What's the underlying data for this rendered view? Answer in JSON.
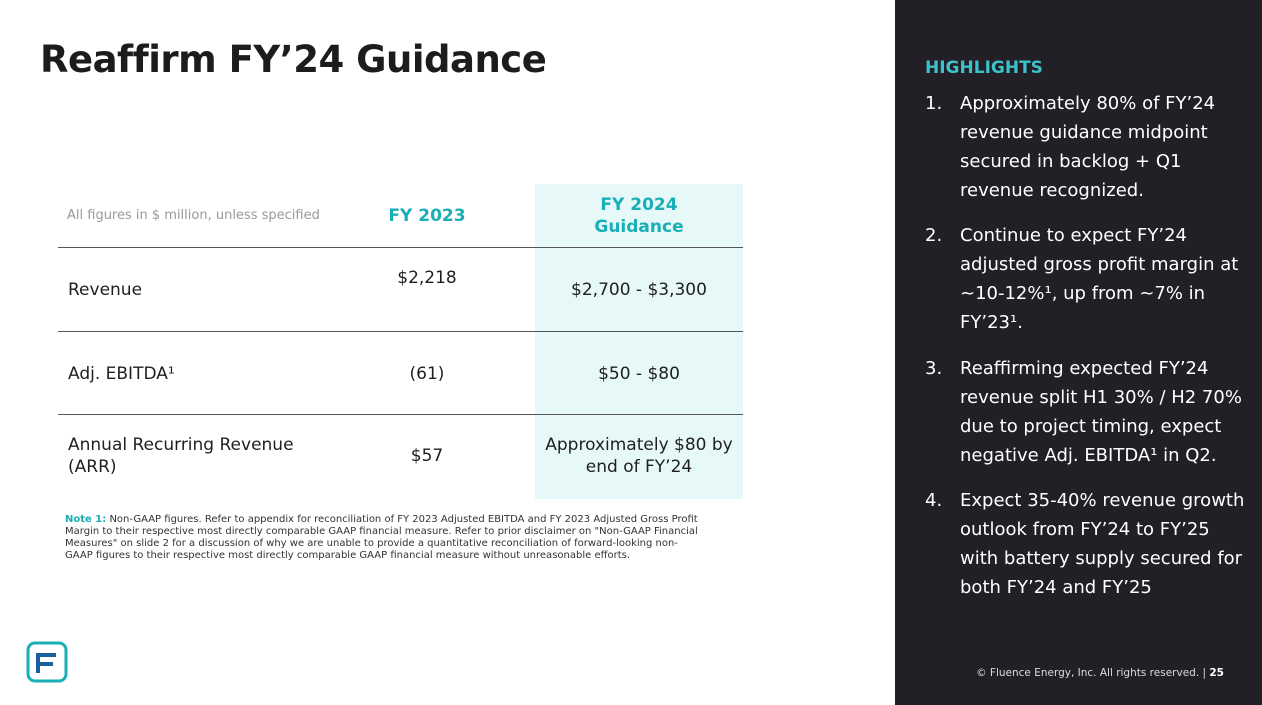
{
  "slide": {
    "title": "Reaffirm FY’24 Guidance",
    "table": {
      "header": [
        "All figures in $ million, unless specified",
        "FY 2023",
        "FY 2024 Guidance"
      ],
      "rows": [
        [
          "Revenue",
          "$2,218",
          "$2,700 - $3,300"
        ],
        [
          "Adj. EBITDA¹",
          "(61)",
          "$50 - $80"
        ],
        [
          "Annual Recurring Revenue (ARR)",
          "$57",
          "Approximately $80 by end of FY’24"
        ]
      ]
    },
    "note": {
      "label": "Note 1:",
      "text": "Non-GAAP figures. Refer to appendix for reconciliation of FY 2023 Adjusted EBITDA and FY 2023 Adjusted Gross Profit Margin to their respective most directly comparable GAAP financial measure. Refer to prior disclaimer on \"Non-GAAP Financial Measures\" on slide 2 for a discussion of why we are unable to provide a quantitative reconciliation of forward-looking non-GAAP figures to their respective most directly comparable GAAP financial measure without unreasonable efforts."
    },
    "highlights": {
      "heading": "HIGHLIGHTS",
      "items": [
        {
          "number": "1.",
          "text": "Approximately 80% of FY’24 revenue guidance midpoint secured in backlog + Q1 revenue recognized."
        },
        {
          "number": "2.",
          "text": "Continue to expect FY’24 adjusted gross profit margin at ~10-12%¹, up from ~7% in FY’23¹."
        },
        {
          "number": "3.",
          "text": "Reaffirming expected FY’24 revenue split H1 30% / H2 70% due to project timing, expect negative Adj. EBITDA¹ in Q2."
        },
        {
          "number": "4.",
          "text": "Expect 35-40% revenue growth outlook from FY’24 to FY’25 with battery supply secured for both FY’24 and FY’25"
        }
      ]
    },
    "footer": {
      "copyright": "© Fluence Energy, Inc. All rights reserved. |",
      "page": "25"
    }
  }
}
